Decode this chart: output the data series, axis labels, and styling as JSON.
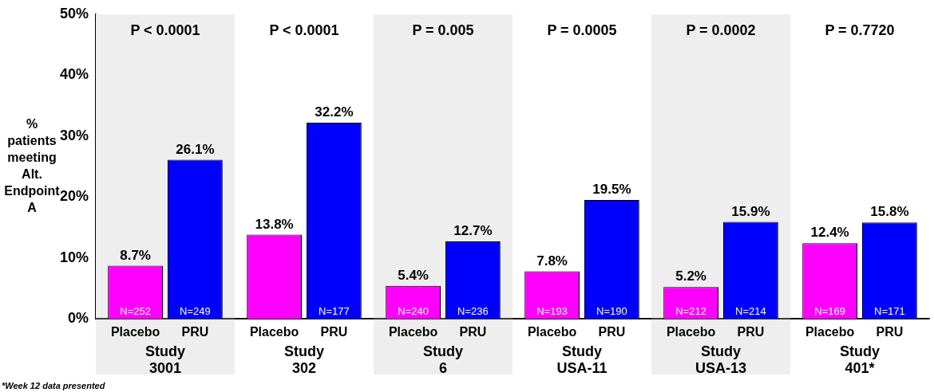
{
  "chart_data": {
    "type": "bar",
    "ylabel": "% patients meeting Alt. Endpoint A",
    "categories": [
      "Study 3001",
      "Study 302",
      "Study 6",
      "Study USA-11",
      "Study USA-13",
      "Study 401*"
    ],
    "series": [
      {
        "name": "Placebo",
        "color": "#ff00ff",
        "values": [
          8.7,
          13.8,
          5.4,
          7.8,
          5.2,
          12.4
        ],
        "value_labels": [
          "8.7%",
          "13.8%",
          "5.4%",
          "7.8%",
          "5.2%",
          "12.4%"
        ]
      },
      {
        "name": "PRU",
        "color": "#0000ff",
        "values": [
          26.1,
          32.2,
          12.7,
          19.5,
          15.9,
          15.8
        ],
        "value_labels": [
          "26.1%",
          "32.2%",
          "12.7%",
          "19.5%",
          "15.9%",
          "15.8%"
        ]
      }
    ],
    "ylim": [
      0,
      50
    ],
    "yticks": [
      {
        "value": 0,
        "label": "0%"
      },
      {
        "value": 10,
        "label": "10%"
      },
      {
        "value": 20,
        "label": "20%"
      },
      {
        "value": 30,
        "label": "30%"
      },
      {
        "value": 40,
        "label": "40%"
      },
      {
        "value": 50,
        "label": "50%"
      }
    ],
    "grid": false,
    "legend": false,
    "bands": [
      {
        "axis": "x",
        "from": "Study 3001",
        "to": "Study 3001",
        "color": "#eeeeee"
      },
      {
        "axis": "x",
        "from": "Study 6",
        "to": "Study 6",
        "color": "#eeeeee"
      },
      {
        "axis": "x",
        "from": "Study USA-13",
        "to": "Study USA-13",
        "color": "#eeeeee"
      }
    ],
    "annotations": [
      "P < 0.0001",
      "P < 0.0001",
      "P = 0.005",
      "P = 0.0005",
      "P = 0.0002",
      "P = 0.7720",
      {
        "text": "N=252",
        "x": "Study 3001",
        "y": 0
      },
      {
        "text": "N=249",
        "x": "Study 3001",
        "y": 0
      },
      {
        "text": "N=177",
        "x": "Study 302",
        "y": 0
      },
      {
        "text": "N=240",
        "x": "Study 6",
        "y": 0
      },
      {
        "text": "N=236",
        "x": "Study 6",
        "y": 0
      },
      {
        "text": "N=193",
        "x": "Study USA-11",
        "y": 0
      },
      {
        "text": "N=190",
        "x": "Study USA-11",
        "y": 0
      },
      {
        "text": "N=212",
        "x": "Study USA-13",
        "y": 0
      },
      {
        "text": "N=214",
        "x": "Study USA-13",
        "y": 0
      },
      {
        "text": "N=169",
        "x": "Study 401*",
        "y": 0
      },
      {
        "text": "N=171",
        "x": "Study 401*",
        "y": 0
      },
      "*Week 12 data presented"
    ]
  }
}
